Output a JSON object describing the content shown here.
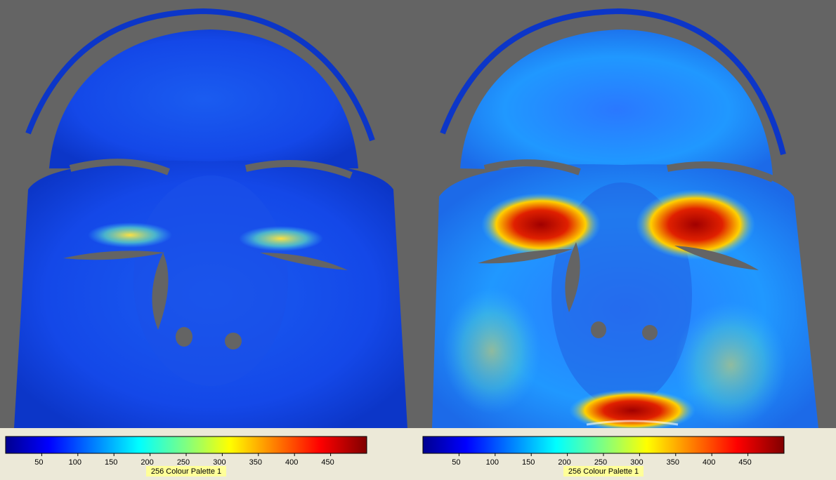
{
  "panels": [
    {
      "colorbar": {
        "range": [
          0,
          500
        ],
        "ticks": [
          50,
          100,
          150,
          200,
          250,
          300,
          350,
          400,
          450
        ],
        "label": "256 Colour Palette 1"
      }
    },
    {
      "colorbar": {
        "range": [
          0,
          500
        ],
        "ticks": [
          50,
          100,
          150,
          200,
          250,
          300,
          350,
          400,
          450
        ],
        "label": "256 Colour Palette 1"
      }
    }
  ]
}
